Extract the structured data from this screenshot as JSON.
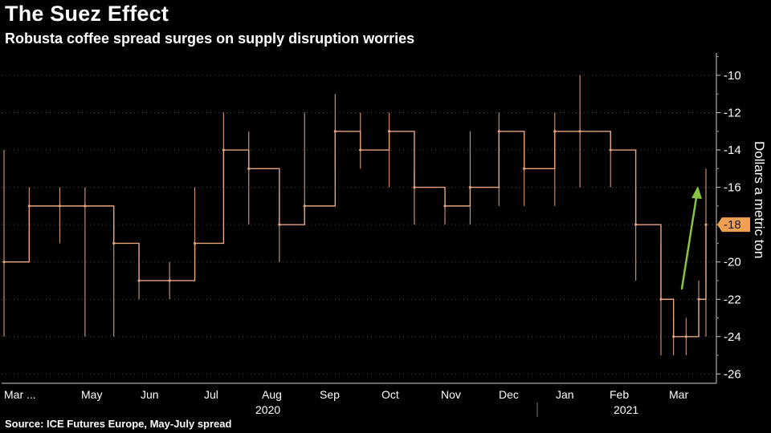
{
  "title": "The Suez Effect",
  "subtitle": "Robusta coffee spread surges on supply disruption worries",
  "source": "Source: ICE Futures Europe, May-July spread",
  "colors": {
    "series": "#e8a47c",
    "arrow": "#86c440",
    "last_badge": "#f0a050",
    "background": "#000000"
  },
  "chart_data": {
    "type": "line",
    "ylabel": "Dollars a metric ton",
    "ylim": [
      -26.5,
      -8.8
    ],
    "yticks": [
      -10,
      -12,
      -14,
      -16,
      -18,
      -20,
      -22,
      -24,
      -26
    ],
    "y_tick_labels": [
      "-10",
      "-12",
      "-14",
      "-16",
      "-18",
      "-20",
      "-22",
      "-24",
      "-26"
    ],
    "x_month_labels": [
      "Mar ...",
      "May",
      "Jun",
      "Jul",
      "Aug",
      "Sep",
      "Oct",
      "Nov",
      "Dec",
      "Jan",
      "Feb",
      "Mar"
    ],
    "x_year_labels": [
      "2020",
      "2021"
    ],
    "last_value": -18,
    "last_value_label": "-18",
    "annotation": "upward-arrow",
    "x": [
      "2020-03-01",
      "2020-03-15",
      "2020-04-01",
      "2020-04-15",
      "2020-05-01",
      "2020-05-15",
      "2020-06-01",
      "2020-06-15",
      "2020-07-01",
      "2020-07-15",
      "2020-08-01",
      "2020-08-15",
      "2020-09-01",
      "2020-09-15",
      "2020-10-01",
      "2020-10-15",
      "2020-11-01",
      "2020-11-15",
      "2020-12-01",
      "2020-12-15",
      "2021-01-01",
      "2021-01-15",
      "2021-02-01",
      "2021-02-15",
      "2021-03-01",
      "2021-03-08",
      "2021-03-15",
      "2021-03-22",
      "2021-03-26"
    ],
    "values": [
      -20,
      -17,
      -17,
      -17,
      -19,
      -21,
      -21,
      -19,
      -14,
      -15,
      -18,
      -17,
      -13,
      -14,
      -13,
      -16,
      -17,
      -16,
      -13,
      -15,
      -13,
      -13,
      -14,
      -18,
      -22,
      -24,
      -24,
      -22,
      -18
    ],
    "high": [
      -14,
      -16,
      -16,
      -16,
      -18,
      -19,
      -20,
      -16,
      -12,
      -13,
      -16,
      -12,
      -11,
      -12,
      -12,
      -15,
      -17,
      -13,
      -12,
      -13,
      -12,
      -10,
      -13,
      -16,
      -19,
      -23,
      -23,
      -21,
      -15
    ],
    "low": [
      -24,
      -20,
      -19,
      -24,
      -24,
      -22,
      -22,
      -21,
      -16,
      -18,
      -20,
      -18,
      -15,
      -15,
      -16,
      -18,
      -18,
      -18,
      -17,
      -17,
      -17,
      -16,
      -16,
      -21,
      -25,
      -25,
      -25,
      -24,
      -24
    ]
  }
}
